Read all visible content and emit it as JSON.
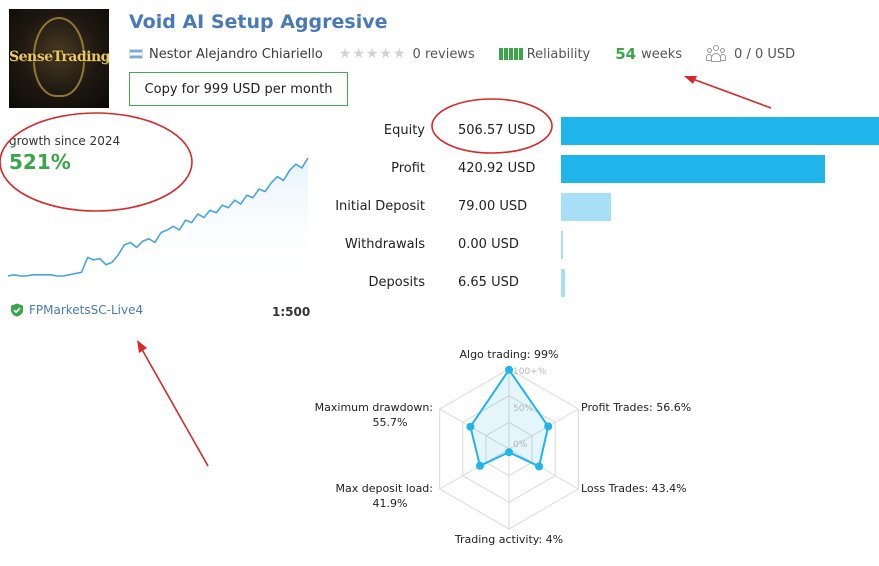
{
  "header": {
    "logo_text": "SenseTrading",
    "title": "Void AI Setup Aggresive",
    "author": "Nestor Alejandro Chiariello",
    "reviews": "0 reviews",
    "reliability_label": "Reliability",
    "weeks_value": "54",
    "weeks_label": "weeks",
    "subscribers": "0 / 0 USD",
    "copy_button": "Copy for 999 USD per month"
  },
  "growth": {
    "label": "growth since 2024",
    "value": "521%",
    "series": [
      5,
      6,
      5,
      5,
      6,
      6,
      6,
      6,
      5,
      5,
      6,
      7,
      8,
      20,
      18,
      19,
      14,
      16,
      22,
      30,
      32,
      28,
      33,
      35,
      32,
      40,
      42,
      45,
      42,
      50,
      48,
      55,
      52,
      58,
      56,
      62,
      60,
      66,
      63,
      70,
      68,
      75,
      73,
      80,
      85,
      82,
      90,
      95,
      92,
      100
    ]
  },
  "account": {
    "server": "FPMarketsSC-Live4",
    "leverage": "1:500"
  },
  "stats": [
    {
      "label": "Equity",
      "value": "506.57 USD",
      "amount": 506.57,
      "color": "#1fb4ea"
    },
    {
      "label": "Profit",
      "value": "420.92 USD",
      "amount": 420.92,
      "color": "#1fb4ea"
    },
    {
      "label": "Initial Deposit",
      "value": "79.00 USD",
      "amount": 79.0,
      "color": "#a6dff6"
    },
    {
      "label": "Withdrawals",
      "value": "0.00 USD",
      "amount": 0.0,
      "color": "#a6dff6"
    },
    {
      "label": "Deposits",
      "value": "6.65 USD",
      "amount": 6.65,
      "color": "#a6dff6"
    }
  ],
  "radar": {
    "scale_labels": [
      "100+%",
      "50%",
      "0%"
    ],
    "axes": [
      {
        "label": "Algo trading: 99%",
        "value": 99
      },
      {
        "label": "Profit Trades: 56.6%",
        "value": 56.6
      },
      {
        "label": "Loss Trades: 43.4%",
        "value": 43.4
      },
      {
        "label": "Trading activity: 4%",
        "value": 4
      },
      {
        "label": "Max deposit load: 41.9%",
        "value": 41.9
      },
      {
        "label": "Maximum drawdown: 55.7%",
        "value": 55.7
      }
    ],
    "colors": {
      "line": "#1fb4ea",
      "fill": "#1fb4ea",
      "grid": "#d9d9d9"
    }
  },
  "colors": {
    "accent": "#4a79b8",
    "positive": "#3aa64a",
    "annotation": "#d42a2a"
  }
}
